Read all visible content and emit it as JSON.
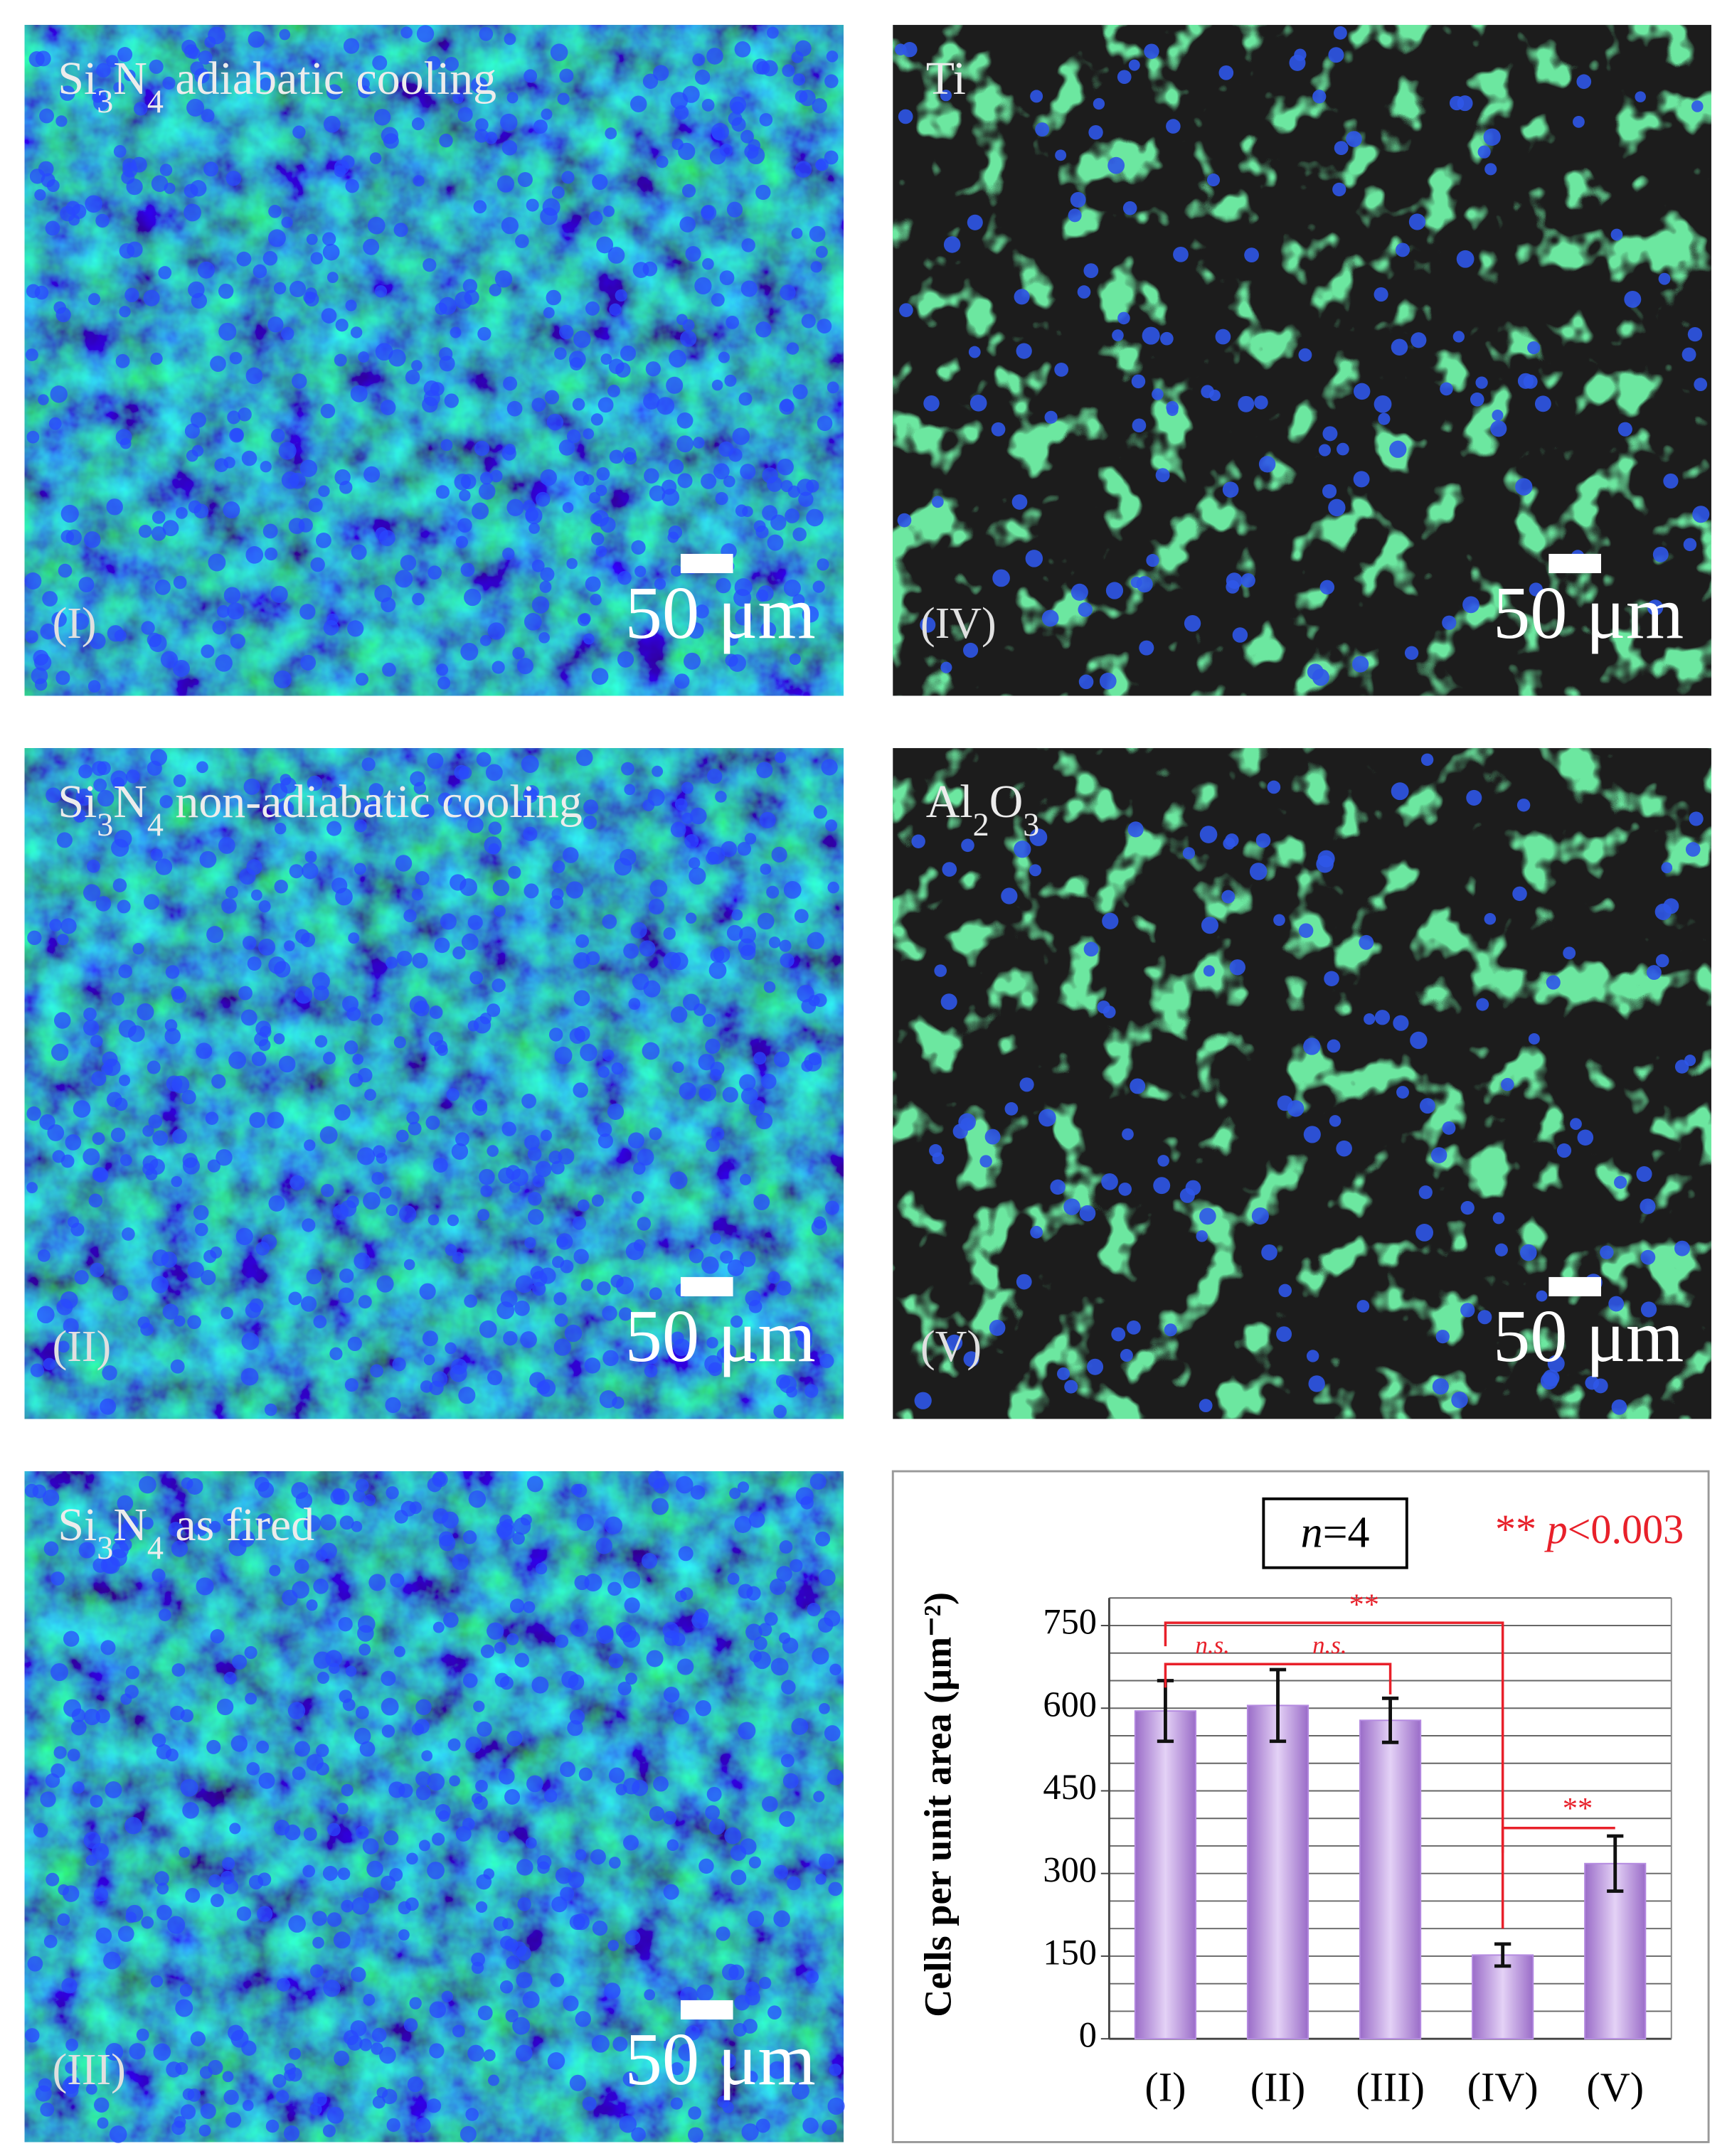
{
  "panels": [
    {
      "label_parts": [
        {
          "text": "Si"
        },
        {
          "text": "3",
          "sub": true
        },
        {
          "text": "N"
        },
        {
          "text": "4",
          "sub": true
        },
        {
          "text": " adiabatic  cooling"
        }
      ],
      "numeral": "(I)",
      "scale_bar": "50 μm"
    },
    {
      "label_parts": [
        {
          "text": "Si"
        },
        {
          "text": "3",
          "sub": true
        },
        {
          "text": "N"
        },
        {
          "text": "4",
          "sub": true
        },
        {
          "text": " non-adiabatic  cooling"
        }
      ],
      "numeral": "(II)",
      "scale_bar": "50 μm"
    },
    {
      "label_parts": [
        {
          "text": "Si"
        },
        {
          "text": "3",
          "sub": true
        },
        {
          "text": "N"
        },
        {
          "text": "4",
          "sub": true
        },
        {
          "text": " as fired"
        }
      ],
      "numeral": "(III)",
      "scale_bar": "50 μm"
    },
    {
      "label_parts": [
        {
          "text": "Ti"
        }
      ],
      "numeral": "(IV)",
      "scale_bar": "50 μm"
    },
    {
      "label_parts": [
        {
          "text": "Al"
        },
        {
          "text": "2",
          "sub": true
        },
        {
          "text": "O"
        },
        {
          "text": "3",
          "sub": true
        }
      ],
      "numeral": "(V)",
      "scale_bar": "50 μm"
    }
  ],
  "chart_data": {
    "type": "bar",
    "y_label": "Cells per unit area (μm⁻²)",
    "categories": [
      "(I)",
      "(II)",
      "(III)",
      "(IV)",
      "(V)"
    ],
    "series": [
      {
        "values": [
          595,
          605,
          578,
          152,
          318
        ],
        "errors": [
          55,
          65,
          40,
          20,
          50
        ],
        "color": "#b48ae0"
      }
    ],
    "ylim": [
      0,
      800
    ],
    "yticks": [
      0,
      150,
      300,
      450,
      600,
      750
    ],
    "grid_yticks": [
      0,
      50,
      100,
      150,
      200,
      250,
      300,
      350,
      400,
      450,
      500,
      550,
      600,
      650,
      700,
      750,
      800
    ],
    "n_label": [
      {
        "text": "n",
        "italic": true
      },
      {
        "text": "=4"
      }
    ],
    "p_label": [
      {
        "text": "** "
      },
      {
        "text": "p",
        "italic": true
      },
      {
        "text": "<0.003"
      }
    ],
    "significance": [
      "n.s.",
      "n.s.",
      "**",
      "**"
    ]
  }
}
